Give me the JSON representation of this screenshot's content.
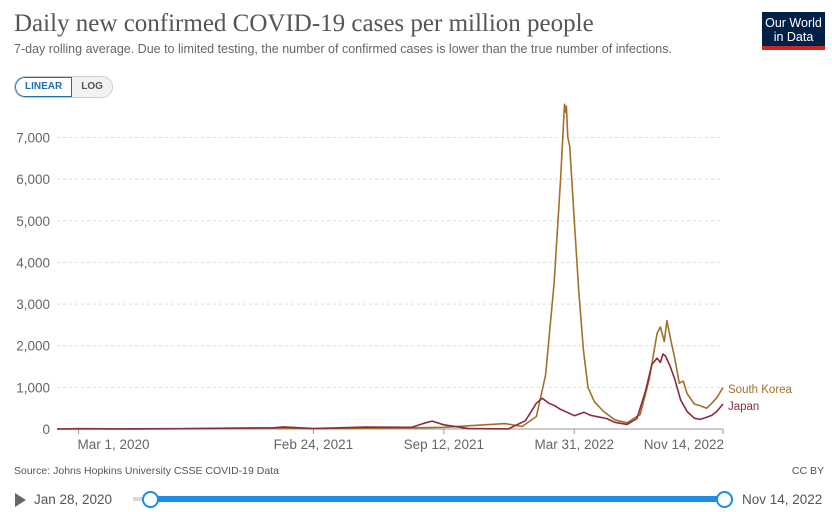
{
  "header": {
    "title": "Daily new confirmed COVID-19 cases per million people",
    "subtitle": "7-day rolling average. Due to limited testing, the number of confirmed cases is lower than the true number of infections.",
    "logo": "Our World in Data"
  },
  "scale_toggle": {
    "linear_label": "LINEAR",
    "log_label": "LOG",
    "selected": "LINEAR"
  },
  "footer": {
    "source": "Source: Johns Hopkins University CSSE COVID-19 Data",
    "license": "CC BY"
  },
  "timeline": {
    "start_label": "Jan 28, 2020",
    "end_label": "Nov 14, 2022",
    "start_fraction": 0.0,
    "end_fraction": 1.0
  },
  "colors": {
    "south_korea": "#a2702a",
    "japan": "#8c2a3c",
    "grid": "#dddddd",
    "accent": "#1d8ce4"
  },
  "chart_data": {
    "type": "line",
    "title": "Daily new confirmed COVID-19 cases per million people",
    "xlabel": "",
    "ylabel": "",
    "x_ticks": [
      "Mar 1, 2020",
      "Feb 24, 2021",
      "Sep 12, 2021",
      "Mar 31, 2022",
      "Nov 14, 2022"
    ],
    "y_ticks": [
      "0",
      "1,000",
      "2,000",
      "3,000",
      "4,000",
      "5,000",
      "6,000",
      "7,000"
    ],
    "ylim": [
      0,
      7900
    ],
    "xlim": [
      "2020-01-28",
      "2022-11-14"
    ],
    "grid": true,
    "legend_placement": "right-end-labels",
    "series": [
      {
        "name": "South Korea",
        "points": [
          [
            "2020-01-28",
            0
          ],
          [
            "2020-03-01",
            10
          ],
          [
            "2020-06-01",
            1
          ],
          [
            "2020-12-25",
            20
          ],
          [
            "2021-02-24",
            8
          ],
          [
            "2021-07-25",
            30
          ],
          [
            "2021-09-12",
            40
          ],
          [
            "2021-12-15",
            130
          ],
          [
            "2022-01-10",
            60
          ],
          [
            "2022-02-01",
            300
          ],
          [
            "2022-02-15",
            1300
          ],
          [
            "2022-02-28",
            3500
          ],
          [
            "2022-03-10",
            6000
          ],
          [
            "2022-03-16",
            7800
          ],
          [
            "2022-03-18",
            7600
          ],
          [
            "2022-03-19",
            7750
          ],
          [
            "2022-03-21",
            7000
          ],
          [
            "2022-03-24",
            6800
          ],
          [
            "2022-03-31",
            5000
          ],
          [
            "2022-04-07",
            3300
          ],
          [
            "2022-04-14",
            1900
          ],
          [
            "2022-04-21",
            1000
          ],
          [
            "2022-05-01",
            650
          ],
          [
            "2022-05-15",
            420
          ],
          [
            "2022-06-01",
            220
          ],
          [
            "2022-06-20",
            150
          ],
          [
            "2022-07-10",
            350
          ],
          [
            "2022-07-24",
            1200
          ],
          [
            "2022-08-05",
            2300
          ],
          [
            "2022-08-10",
            2450
          ],
          [
            "2022-08-16",
            2100
          ],
          [
            "2022-08-20",
            2600
          ],
          [
            "2022-08-25",
            2200
          ],
          [
            "2022-09-01",
            1700
          ],
          [
            "2022-09-08",
            1100
          ],
          [
            "2022-09-14",
            1150
          ],
          [
            "2022-09-20",
            850
          ],
          [
            "2022-10-01",
            600
          ],
          [
            "2022-10-10",
            560
          ],
          [
            "2022-10-20",
            500
          ],
          [
            "2022-10-28",
            620
          ],
          [
            "2022-11-05",
            760
          ],
          [
            "2022-11-14",
            1000
          ]
        ]
      },
      {
        "name": "Japan",
        "points": [
          [
            "2020-01-28",
            0
          ],
          [
            "2020-03-01",
            1
          ],
          [
            "2020-08-01",
            8
          ],
          [
            "2020-12-25",
            30
          ],
          [
            "2021-01-10",
            50
          ],
          [
            "2021-02-24",
            10
          ],
          [
            "2021-05-15",
            45
          ],
          [
            "2021-07-25",
            40
          ],
          [
            "2021-08-15",
            150
          ],
          [
            "2021-08-25",
            190
          ],
          [
            "2021-09-12",
            100
          ],
          [
            "2021-10-20",
            10
          ],
          [
            "2021-12-20",
            2
          ],
          [
            "2022-01-15",
            200
          ],
          [
            "2022-02-01",
            620
          ],
          [
            "2022-02-10",
            740
          ],
          [
            "2022-02-20",
            620
          ],
          [
            "2022-03-01",
            560
          ],
          [
            "2022-03-10",
            470
          ],
          [
            "2022-03-20",
            400
          ],
          [
            "2022-03-31",
            320
          ],
          [
            "2022-04-15",
            400
          ],
          [
            "2022-04-25",
            330
          ],
          [
            "2022-05-10",
            280
          ],
          [
            "2022-05-20",
            250
          ],
          [
            "2022-06-01",
            160
          ],
          [
            "2022-06-20",
            110
          ],
          [
            "2022-07-05",
            250
          ],
          [
            "2022-07-18",
            900
          ],
          [
            "2022-07-28",
            1550
          ],
          [
            "2022-08-05",
            1700
          ],
          [
            "2022-08-10",
            1600
          ],
          [
            "2022-08-14",
            1800
          ],
          [
            "2022-08-18",
            1750
          ],
          [
            "2022-08-25",
            1500
          ],
          [
            "2022-09-01",
            1200
          ],
          [
            "2022-09-10",
            700
          ],
          [
            "2022-09-20",
            420
          ],
          [
            "2022-10-01",
            260
          ],
          [
            "2022-10-10",
            230
          ],
          [
            "2022-10-20",
            280
          ],
          [
            "2022-10-28",
            330
          ],
          [
            "2022-11-05",
            430
          ],
          [
            "2022-11-14",
            600
          ]
        ]
      }
    ]
  }
}
